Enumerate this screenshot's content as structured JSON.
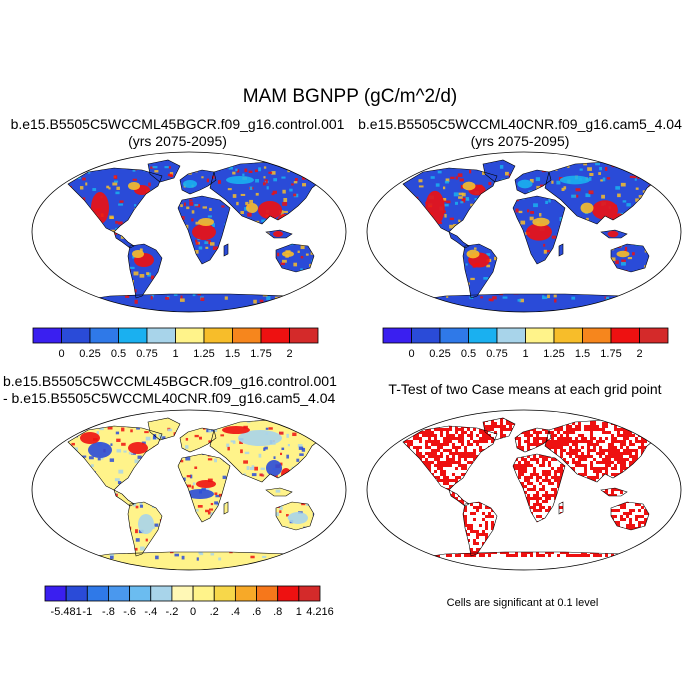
{
  "title": "MAM BGNPP (gC/m^2/d)",
  "panels": {
    "top_left": {
      "line1": "b.e15.B5505C5WCCML45BGCR.f09_g16.control.001",
      "line2": "(yrs 2075-2095)"
    },
    "top_right": {
      "line1": "b.e15.B5505C5WCCML40CNR.f09_g16.cam5_4.04",
      "line2": "(yrs 2075-2095)"
    },
    "bottom_left": {
      "line1": "b.e15.B5505C5WCCML45BGCR.f09_g16.control.001",
      "line2": "- b.e15.B5505C5WCCML40CNR.f09_g16.cam5_4.04"
    },
    "bottom_right": {
      "line1": "T-Test of two Case means at each grid point",
      "note": "Cells are significant at 0.1 level"
    }
  },
  "colorbar_abs": {
    "colors": [
      "#3a1ff0",
      "#2a4bd8",
      "#2f79e8",
      "#1ab0f0",
      "#a8d4ea",
      "#fff38a",
      "#f7bd2a",
      "#f6861d",
      "#ee1111",
      "#d42a2a"
    ],
    "labels": [
      "0",
      "0.25",
      "0.5",
      "0.75",
      "1",
      "1.25",
      "1.5",
      "1.75",
      "2"
    ]
  },
  "colorbar_diff": {
    "colors": [
      "#3a1ff0",
      "#2a4bd8",
      "#2f79e8",
      "#4a98ee",
      "#6bbcf0",
      "#a8d4ea",
      "#fff8b6",
      "#fff38a",
      "#f7d74a",
      "#f7a928",
      "#f6771b",
      "#ee1111",
      "#d42a2a"
    ],
    "labels": [
      "-5.481",
      "-1",
      "-.8",
      "-.6",
      "-.4",
      "-.2",
      "0",
      ".2",
      ".4",
      ".6",
      ".8",
      "1",
      "4.216"
    ]
  },
  "map_palettes": {
    "ocean": "#ffffff",
    "abs_land": "#2a4bd8",
    "abs_high": "#ee1111",
    "abs_mid": "#f7bd2a",
    "abs_light": "#1ab0f0",
    "diff_land": "#fff38a",
    "diff_pale": "#a8d4ea",
    "diff_pos": "#ee1111",
    "diff_neg": "#2a4bd8",
    "sig_color": "#ee1111"
  }
}
